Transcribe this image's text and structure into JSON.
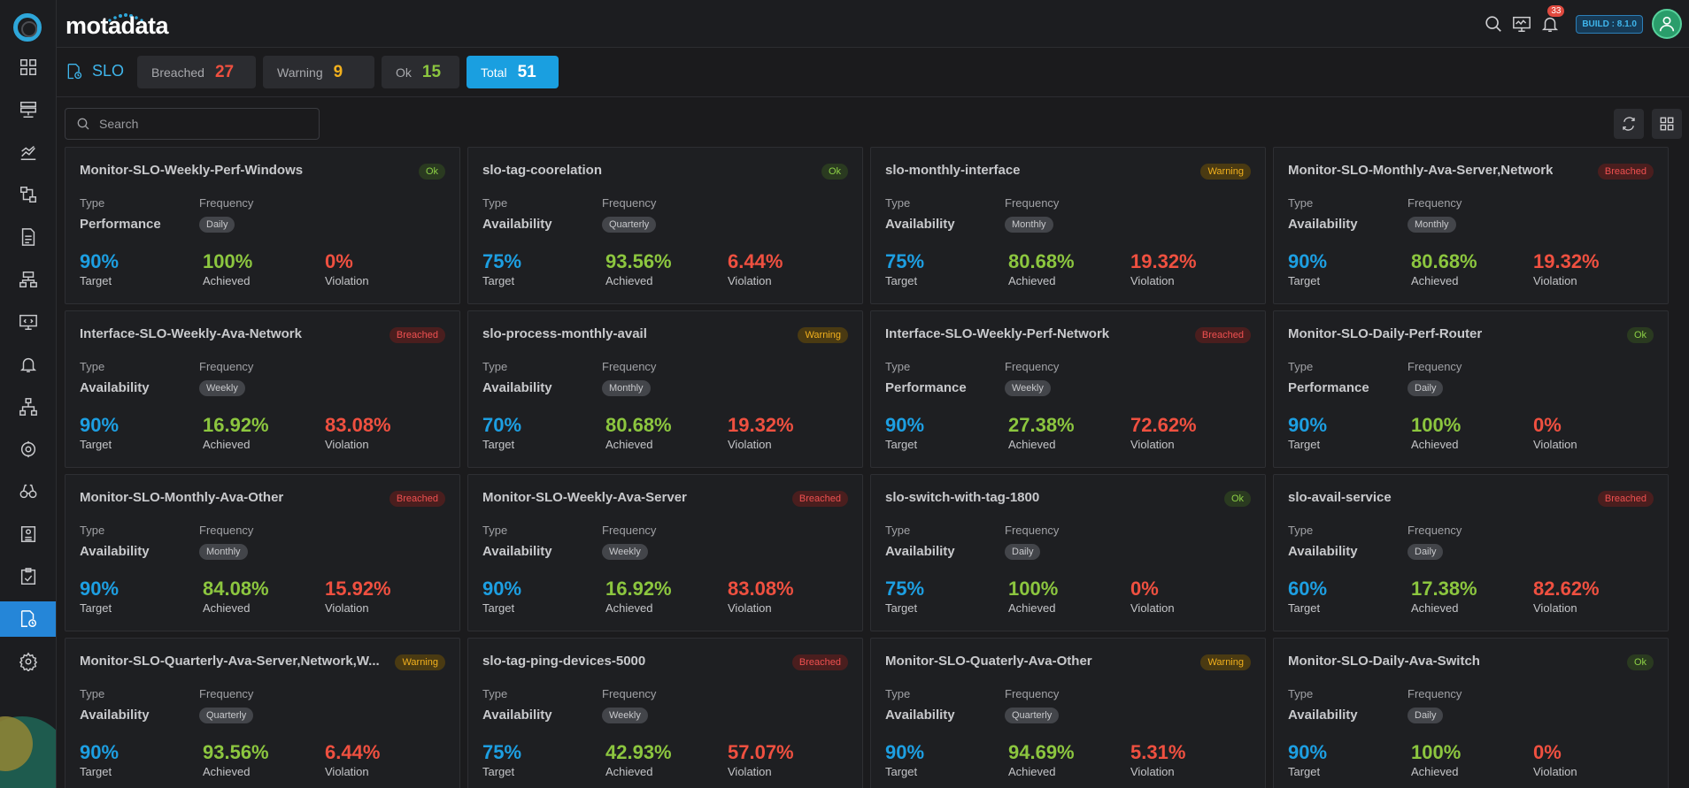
{
  "app": {
    "brand": "motadata",
    "build": "BUILD : 8.1.0",
    "notification_count": "33"
  },
  "header": {
    "title": "SLO",
    "stats": [
      {
        "label": "Breached",
        "value": "27",
        "color": "#ef5040"
      },
      {
        "label": "Warning",
        "value": "9",
        "color": "#f2b01d"
      },
      {
        "label": "Ok",
        "value": "15",
        "color": "#8cc63f"
      },
      {
        "label": "Total",
        "value": "51",
        "color": "#ffffff"
      }
    ]
  },
  "search": {
    "placeholder": "Search"
  },
  "labels": {
    "type": "Type",
    "frequency": "Frequency",
    "target": "Target",
    "achieved": "Achieved",
    "violation": "Violation"
  },
  "cards": [
    {
      "title": "Monitor-SLO-Weekly-Perf-Windows",
      "status": "Ok",
      "type": "Performance",
      "frequency": "Daily",
      "target": "90%",
      "achieved": "100%",
      "violation": "0%"
    },
    {
      "title": "slo-tag-coorelation",
      "status": "Ok",
      "type": "Availability",
      "frequency": "Quarterly",
      "target": "75%",
      "achieved": "93.56%",
      "violation": "6.44%"
    },
    {
      "title": "slo-monthly-interface",
      "status": "Warning",
      "type": "Availability",
      "frequency": "Monthly",
      "target": "75%",
      "achieved": "80.68%",
      "violation": "19.32%"
    },
    {
      "title": "Monitor-SLO-Monthly-Ava-Server,Network",
      "status": "Breached",
      "type": "Availability",
      "frequency": "Monthly",
      "target": "90%",
      "achieved": "80.68%",
      "violation": "19.32%"
    },
    {
      "title": "Interface-SLO-Weekly-Ava-Network",
      "status": "Breached",
      "type": "Availability",
      "frequency": "Weekly",
      "target": "90%",
      "achieved": "16.92%",
      "violation": "83.08%"
    },
    {
      "title": "slo-process-monthly-avail",
      "status": "Warning",
      "type": "Availability",
      "frequency": "Monthly",
      "target": "70%",
      "achieved": "80.68%",
      "violation": "19.32%"
    },
    {
      "title": "Interface-SLO-Weekly-Perf-Network",
      "status": "Breached",
      "type": "Performance",
      "frequency": "Weekly",
      "target": "90%",
      "achieved": "27.38%",
      "violation": "72.62%"
    },
    {
      "title": "Monitor-SLO-Daily-Perf-Router",
      "status": "Ok",
      "type": "Performance",
      "frequency": "Daily",
      "target": "90%",
      "achieved": "100%",
      "violation": "0%"
    },
    {
      "title": "Monitor-SLO-Monthly-Ava-Other",
      "status": "Breached",
      "type": "Availability",
      "frequency": "Monthly",
      "target": "90%",
      "achieved": "84.08%",
      "violation": "15.92%"
    },
    {
      "title": "Monitor-SLO-Weekly-Ava-Server",
      "status": "Breached",
      "type": "Availability",
      "frequency": "Weekly",
      "target": "90%",
      "achieved": "16.92%",
      "violation": "83.08%"
    },
    {
      "title": "slo-switch-with-tag-1800",
      "status": "Ok",
      "type": "Availability",
      "frequency": "Daily",
      "target": "75%",
      "achieved": "100%",
      "violation": "0%"
    },
    {
      "title": "slo-avail-service",
      "status": "Breached",
      "type": "Availability",
      "frequency": "Daily",
      "target": "60%",
      "achieved": "17.38%",
      "violation": "82.62%"
    },
    {
      "title": "Monitor-SLO-Quarterly-Ava-Server,Network,W...",
      "status": "Warning",
      "type": "Availability",
      "frequency": "Quarterly",
      "target": "90%",
      "achieved": "93.56%",
      "violation": "6.44%"
    },
    {
      "title": "slo-tag-ping-devices-5000",
      "status": "Breached",
      "type": "Availability",
      "frequency": "Weekly",
      "target": "75%",
      "achieved": "42.93%",
      "violation": "57.07%"
    },
    {
      "title": "Monitor-SLO-Quaterly-Ava-Other",
      "status": "Warning",
      "type": "Availability",
      "frequency": "Quarterly",
      "target": "90%",
      "achieved": "94.69%",
      "violation": "5.31%"
    },
    {
      "title": "Monitor-SLO-Daily-Ava-Switch",
      "status": "Ok",
      "type": "Availability",
      "frequency": "Daily",
      "target": "90%",
      "achieved": "100%",
      "violation": "0%"
    }
  ],
  "sidebar": {
    "items": [
      "dashboard-icon",
      "inventory-icon",
      "metrics-icon",
      "flow-icon",
      "report-icon",
      "topology-icon",
      "monitor-icon",
      "alert-icon",
      "network-icon",
      "health-icon",
      "explorer-icon",
      "log-icon",
      "audit-icon",
      "slo-icon",
      "settings-icon"
    ]
  }
}
